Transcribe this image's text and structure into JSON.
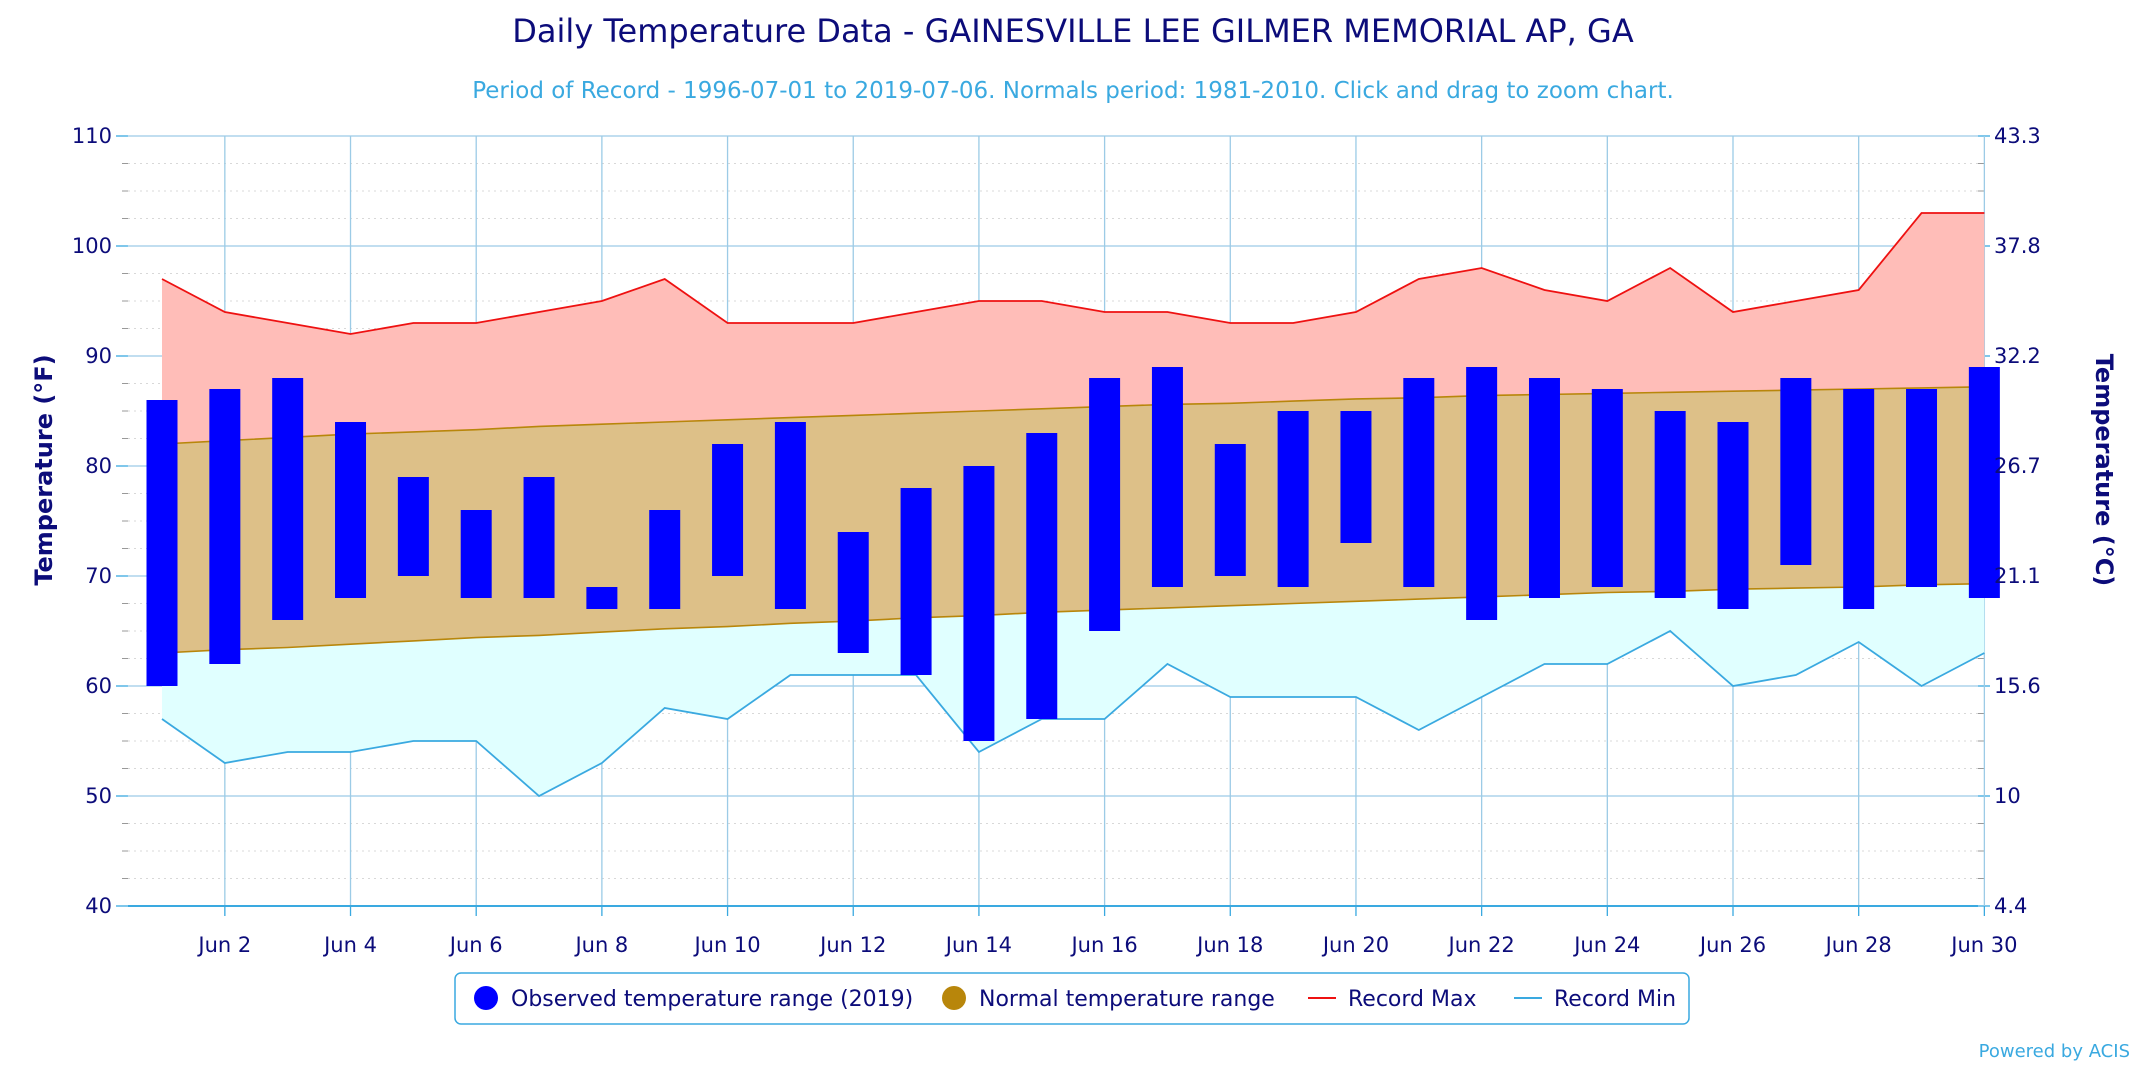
{
  "chart_data": {
    "type": "bar",
    "title": "Daily Temperature Data - GAINESVILLE LEE GILMER MEMORIAL AP, GA",
    "subtitle": "Period of Record - 1996-07-01 to 2019-07-06. Normals period: 1981-2010. Click and drag to zoom chart.",
    "ylabel": "Temperature (°F)",
    "ylabel_right": "Temperature (°C)",
    "ylim": [
      40,
      110
    ],
    "yticks": [
      "40",
      "50",
      "60",
      "70",
      "80",
      "90",
      "100",
      "110"
    ],
    "yticks_right": [
      "4.4",
      "10",
      "15.6",
      "21.1",
      "26.7",
      "32.2",
      "37.8",
      "43.3"
    ],
    "xticks": [
      "Jun 2",
      "Jun 4",
      "Jun 6",
      "Jun 8",
      "Jun 10",
      "Jun 12",
      "Jun 14",
      "Jun 16",
      "Jun 18",
      "Jun 20",
      "Jun 22",
      "Jun 24",
      "Jun 26",
      "Jun 28",
      "Jun 30"
    ],
    "days": [
      1,
      2,
      3,
      4,
      5,
      6,
      7,
      8,
      9,
      10,
      11,
      12,
      13,
      14,
      15,
      16,
      17,
      18,
      19,
      20,
      21,
      22,
      23,
      24,
      25,
      26,
      27,
      28,
      29,
      30
    ],
    "grid": true,
    "legend_position": "bottom-center",
    "series": [
      {
        "name": "Observed temperature range (2019)",
        "kind": "range-bar",
        "color": "#0000ff",
        "low": [
          60,
          62,
          66,
          68,
          70,
          68,
          68,
          67,
          67,
          70,
          67,
          63,
          61,
          55,
          57,
          65,
          69,
          70,
          69,
          73,
          69,
          66,
          68,
          69,
          68,
          67,
          71,
          67,
          69,
          68
        ],
        "high": [
          86,
          87,
          88,
          84,
          79,
          76,
          79,
          69,
          76,
          82,
          84,
          74,
          78,
          80,
          83,
          88,
          89,
          82,
          85,
          85,
          88,
          89,
          88,
          87,
          85,
          84,
          88,
          87,
          87,
          89
        ]
      },
      {
        "name": "Normal temperature range",
        "kind": "area-range",
        "color": "#b8860b",
        "fill": "#ddc088",
        "low": [
          63.0,
          63.3,
          63.5,
          63.8,
          64.1,
          64.4,
          64.6,
          64.9,
          65.2,
          65.4,
          65.7,
          65.9,
          66.2,
          66.4,
          66.7,
          66.9,
          67.1,
          67.3,
          67.5,
          67.7,
          67.9,
          68.1,
          68.3,
          68.5,
          68.6,
          68.8,
          68.9,
          69.0,
          69.2,
          69.3
        ],
        "high": [
          82.0,
          82.3,
          82.6,
          82.9,
          83.1,
          83.3,
          83.6,
          83.8,
          84.0,
          84.2,
          84.4,
          84.6,
          84.8,
          85.0,
          85.2,
          85.4,
          85.6,
          85.7,
          85.9,
          86.1,
          86.2,
          86.4,
          86.5,
          86.6,
          86.7,
          86.8,
          86.9,
          87.0,
          87.1,
          87.2
        ]
      },
      {
        "name": "Record Max",
        "kind": "line",
        "color": "#ee1111",
        "fill": "#ffbdb8",
        "values": [
          97,
          94,
          93,
          92,
          93,
          93,
          94,
          95,
          97,
          93,
          93,
          93,
          94,
          95,
          95,
          94,
          94,
          93,
          93,
          94,
          97,
          98,
          96,
          95,
          98,
          94,
          95,
          96,
          103,
          103
        ]
      },
      {
        "name": "Record Min",
        "kind": "line",
        "color": "#3aa9e0",
        "fill": "#e0ffff",
        "values": [
          57,
          53,
          54,
          54,
          55,
          55,
          50,
          53,
          58,
          57,
          61,
          61,
          61,
          54,
          57,
          57,
          62,
          59,
          59,
          59,
          56,
          59,
          62,
          62,
          65,
          60,
          61,
          64,
          60,
          63
        ]
      }
    ],
    "credit": "Powered by ACIS"
  }
}
